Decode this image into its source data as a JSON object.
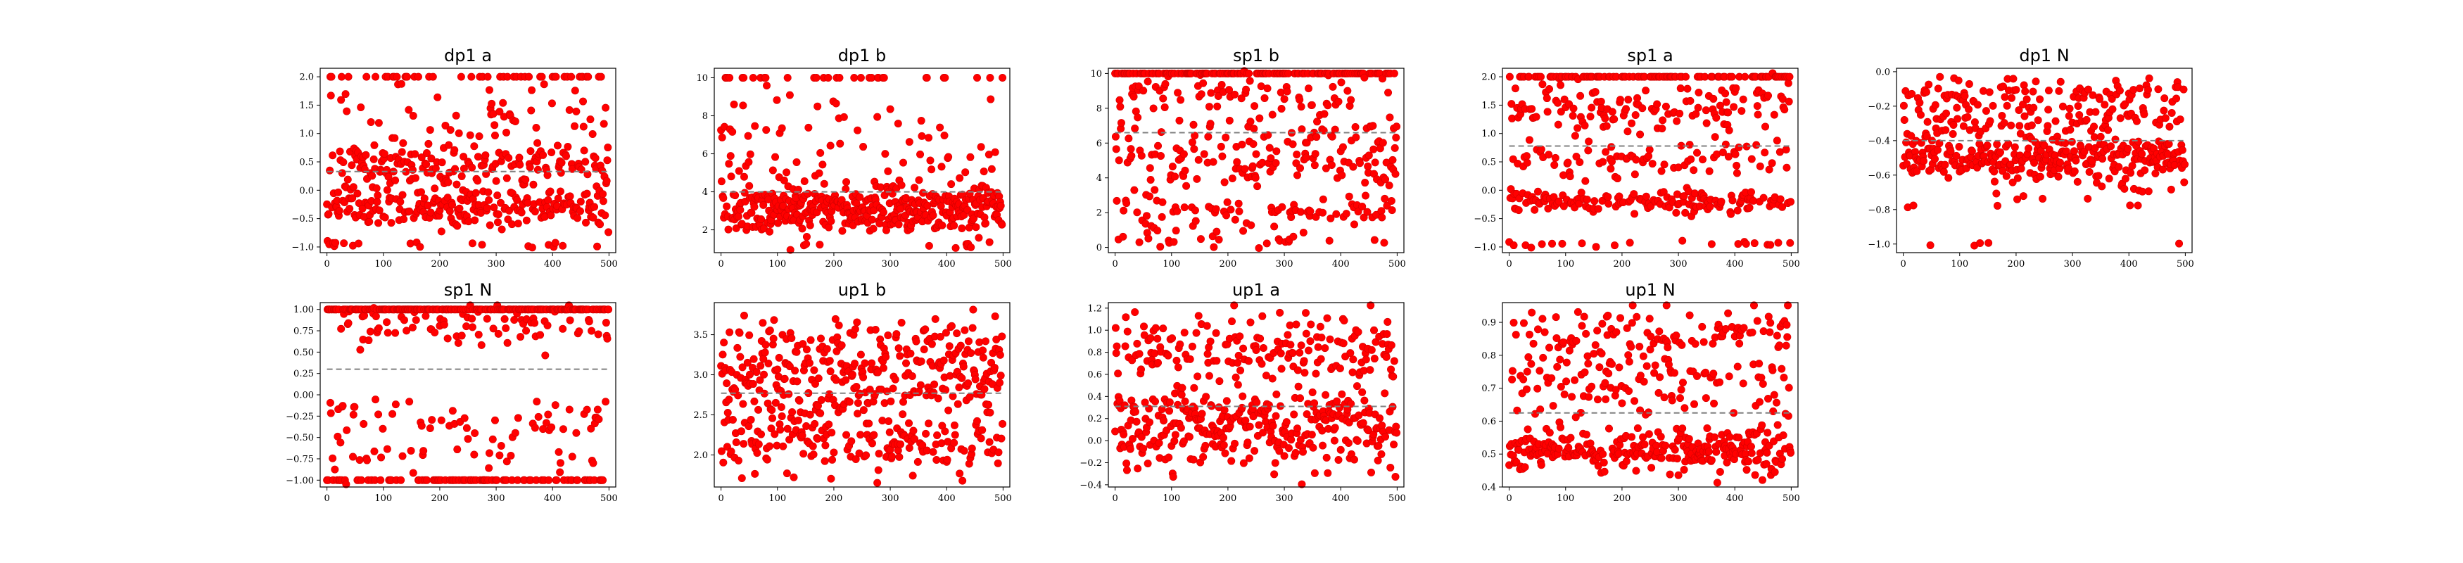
{
  "figure": {
    "point_color": "#ff0000",
    "point_edge_color": "#d40000",
    "mean_line_color": "#808080",
    "frame_color": "#000000"
  },
  "chart_data": [
    {
      "type": "scatter",
      "title": "dp1 a",
      "n_points": 500,
      "xlim": [
        -12,
        512
      ],
      "ylim": [
        -1.1,
        2.15
      ],
      "xticks": [
        0,
        100,
        200,
        300,
        400,
        500
      ],
      "yticks": [
        -1.0,
        -0.5,
        0.0,
        0.5,
        1.0,
        1.5,
        2.0
      ],
      "ytick_labels": [
        "−1.0",
        "−0.5",
        "0.0",
        "0.5",
        "1.0",
        "1.5",
        "2.0"
      ],
      "mean": 0.33,
      "clusters": [
        {
          "center": -0.35,
          "spread": 0.15,
          "weight": 0.33
        },
        {
          "center": 0.1,
          "spread": 0.25,
          "weight": 0.22
        },
        {
          "center": 0.5,
          "spread": 0.15,
          "weight": 0.22
        },
        {
          "center": 1.2,
          "spread": 0.4,
          "weight": 0.1
        },
        {
          "center": 2.0,
          "spread": 0.0,
          "weight": 0.1
        },
        {
          "center": -0.95,
          "spread": 0.03,
          "weight": 0.03
        }
      ]
    },
    {
      "type": "scatter",
      "title": "dp1 b",
      "n_points": 500,
      "xlim": [
        -12,
        512
      ],
      "ylim": [
        0.8,
        10.5
      ],
      "xticks": [
        0,
        100,
        200,
        300,
        400,
        500
      ],
      "yticks": [
        2,
        4,
        6,
        8,
        10
      ],
      "ytick_labels": [
        "2",
        "4",
        "6",
        "8",
        "10"
      ],
      "mean": 4.0,
      "clusters": [
        {
          "center": 3.3,
          "spread": 0.55,
          "weight": 0.65
        },
        {
          "center": 2.3,
          "spread": 0.3,
          "weight": 0.1
        },
        {
          "center": 5.5,
          "spread": 1.2,
          "weight": 0.14
        },
        {
          "center": 8.2,
          "spread": 0.8,
          "weight": 0.04
        },
        {
          "center": 10.0,
          "spread": 0.0,
          "weight": 0.05
        },
        {
          "center": 1.2,
          "spread": 0.2,
          "weight": 0.02
        }
      ]
    },
    {
      "type": "scatter",
      "title": "sp1 b",
      "n_points": 500,
      "xlim": [
        -12,
        512
      ],
      "ylim": [
        -0.3,
        10.3
      ],
      "xticks": [
        0,
        100,
        200,
        300,
        400,
        500
      ],
      "yticks": [
        0,
        2,
        4,
        6,
        8,
        10
      ],
      "ytick_labels": [
        "0",
        "2",
        "4",
        "6",
        "8",
        "10"
      ],
      "mean": 6.6,
      "clusters": [
        {
          "center": 10.0,
          "spread": 0.0,
          "weight": 0.34
        },
        {
          "center": 8.8,
          "spread": 0.6,
          "weight": 0.14
        },
        {
          "center": 6.5,
          "spread": 0.8,
          "weight": 0.13
        },
        {
          "center": 4.6,
          "spread": 0.7,
          "weight": 0.17
        },
        {
          "center": 2.0,
          "spread": 0.6,
          "weight": 0.18
        },
        {
          "center": 0.3,
          "spread": 0.2,
          "weight": 0.04
        }
      ]
    },
    {
      "type": "scatter",
      "title": "sp1 a",
      "n_points": 500,
      "xlim": [
        -12,
        512
      ],
      "ylim": [
        -1.1,
        2.15
      ],
      "xticks": [
        0,
        100,
        200,
        300,
        400,
        500
      ],
      "yticks": [
        -1.0,
        -0.5,
        0.0,
        0.5,
        1.0,
        1.5,
        2.0
      ],
      "ytick_labels": [
        "−1.0",
        "−0.5",
        "0.0",
        "0.5",
        "1.0",
        "1.5",
        "2.0"
      ],
      "mean": 0.78,
      "clusters": [
        {
          "center": -0.2,
          "spread": 0.1,
          "weight": 0.35
        },
        {
          "center": 0.6,
          "spread": 0.2,
          "weight": 0.18
        },
        {
          "center": 1.5,
          "spread": 0.25,
          "weight": 0.22
        },
        {
          "center": 2.0,
          "spread": 0.0,
          "weight": 0.2
        },
        {
          "center": -0.95,
          "spread": 0.03,
          "weight": 0.05
        }
      ]
    },
    {
      "type": "scatter",
      "title": "dp1 N",
      "n_points": 500,
      "xlim": [
        -12,
        512
      ],
      "ylim": [
        -1.05,
        0.02
      ],
      "xticks": [
        0,
        100,
        200,
        300,
        400,
        500
      ],
      "yticks": [
        -1.0,
        -0.8,
        -0.6,
        -0.4,
        -0.2,
        0.0
      ],
      "ytick_labels": [
        "−1.0",
        "−0.8",
        "−0.6",
        "−0.4",
        "−0.2",
        "0.0"
      ],
      "mean": -0.4,
      "clusters": [
        {
          "center": -0.5,
          "spread": 0.07,
          "weight": 0.6
        },
        {
          "center": -0.27,
          "spread": 0.05,
          "weight": 0.17
        },
        {
          "center": -0.12,
          "spread": 0.04,
          "weight": 0.17
        },
        {
          "center": -0.7,
          "spread": 0.06,
          "weight": 0.05
        },
        {
          "center": -1.0,
          "spread": 0.01,
          "weight": 0.01
        }
      ]
    },
    {
      "type": "scatter",
      "title": "sp1 N",
      "n_points": 500,
      "xlim": [
        -12,
        512
      ],
      "ylim": [
        -1.08,
        1.08
      ],
      "xticks": [
        0,
        100,
        200,
        300,
        400,
        500
      ],
      "yticks": [
        -1.0,
        -0.75,
        -0.5,
        -0.25,
        0.0,
        0.25,
        0.5,
        0.75,
        1.0
      ],
      "ytick_labels": [
        "−1.00",
        "−0.75",
        "−0.50",
        "−0.25",
        "0.00",
        "0.25",
        "0.50",
        "0.75",
        "1.00"
      ],
      "mean": 0.3,
      "clusters": [
        {
          "center": 1.0,
          "spread": 0.0,
          "weight": 0.5
        },
        {
          "center": 0.8,
          "spread": 0.12,
          "weight": 0.15
        },
        {
          "center": -1.0,
          "spread": 0.0,
          "weight": 0.18
        },
        {
          "center": -0.75,
          "spread": 0.1,
          "weight": 0.07
        },
        {
          "center": -0.3,
          "spread": 0.15,
          "weight": 0.1
        }
      ]
    },
    {
      "type": "scatter",
      "title": "up1 b",
      "n_points": 500,
      "xlim": [
        -12,
        512
      ],
      "ylim": [
        1.6,
        3.9
      ],
      "xticks": [
        0,
        100,
        200,
        300,
        400,
        500
      ],
      "yticks": [
        2.0,
        2.5,
        3.0,
        3.5
      ],
      "ytick_labels": [
        "2.0",
        "2.5",
        "3.0",
        "3.5"
      ],
      "mean": 2.77,
      "clusters": [
        {
          "center": 2.8,
          "spread": 0.4,
          "weight": 0.6
        },
        {
          "center": 3.3,
          "spread": 0.2,
          "weight": 0.2
        },
        {
          "center": 2.1,
          "spread": 0.2,
          "weight": 0.2
        }
      ]
    },
    {
      "type": "scatter",
      "title": "up1 a",
      "n_points": 500,
      "xlim": [
        -12,
        512
      ],
      "ylim": [
        -0.42,
        1.25
      ],
      "xticks": [
        0,
        100,
        200,
        300,
        400,
        500
      ],
      "yticks": [
        -0.4,
        -0.2,
        0.0,
        0.2,
        0.4,
        0.6,
        0.8,
        1.0,
        1.2
      ],
      "ytick_labels": [
        "−0.4",
        "−0.2",
        "0.0",
        "0.2",
        "0.4",
        "0.6",
        "0.8",
        "1.0",
        "1.2"
      ],
      "mean": 0.31,
      "clusters": [
        {
          "center": 0.05,
          "spread": 0.15,
          "weight": 0.45
        },
        {
          "center": 0.3,
          "spread": 0.08,
          "weight": 0.2
        },
        {
          "center": 0.85,
          "spread": 0.15,
          "weight": 0.3
        },
        {
          "center": 0.6,
          "spread": 0.1,
          "weight": 0.05
        }
      ]
    },
    {
      "type": "scatter",
      "title": "up1 N",
      "n_points": 500,
      "xlim": [
        -12,
        512
      ],
      "ylim": [
        0.4,
        0.96
      ],
      "xticks": [
        0,
        100,
        200,
        300,
        400,
        500
      ],
      "yticks": [
        0.4,
        0.5,
        0.6,
        0.7,
        0.8,
        0.9
      ],
      "ytick_labels": [
        "0.4",
        "0.5",
        "0.6",
        "0.7",
        "0.8",
        "0.9"
      ],
      "mean": 0.625,
      "clusters": [
        {
          "center": 0.51,
          "spread": 0.035,
          "weight": 0.55
        },
        {
          "center": 0.72,
          "spread": 0.04,
          "weight": 0.18
        },
        {
          "center": 0.86,
          "spread": 0.04,
          "weight": 0.22
        },
        {
          "center": 0.63,
          "spread": 0.03,
          "weight": 0.05
        }
      ]
    }
  ]
}
